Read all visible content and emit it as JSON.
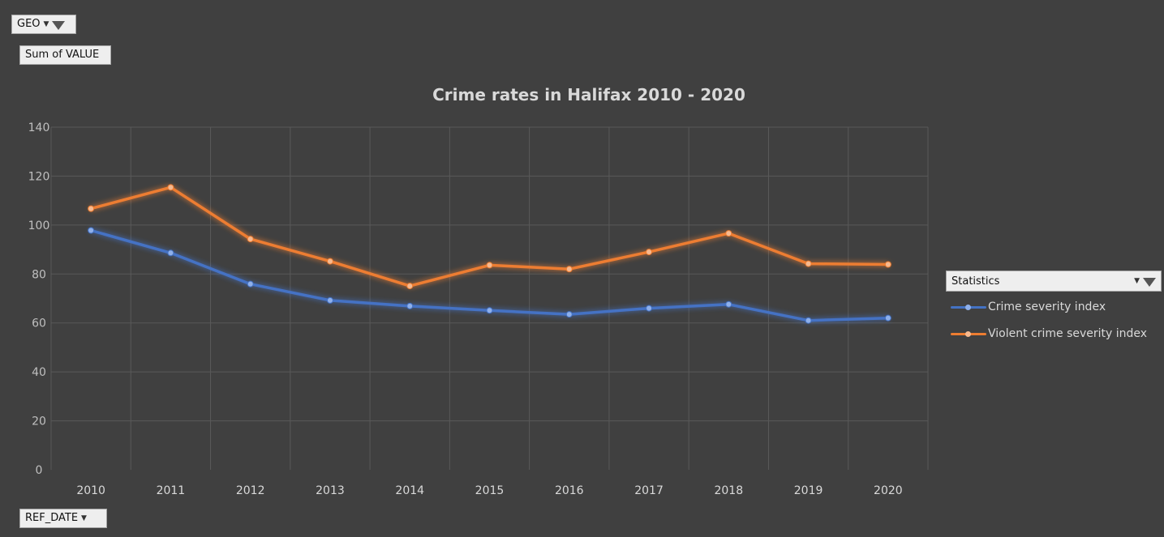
{
  "filters": {
    "geo_label": "GEO",
    "sum_label": "Sum of VALUE",
    "ref_date_label": "REF_DATE"
  },
  "legend": {
    "header": "Statistics"
  },
  "colors": {
    "background": "#404040",
    "grid": "#595959",
    "text": "#d9d9d9",
    "series_blue": "#4472c4",
    "series_orange": "#ed7d31"
  },
  "chart_data": {
    "type": "line",
    "title": "Crime rates in Halifax 2010 - 2020",
    "xlabel": "",
    "ylabel": "",
    "categories": [
      "2010",
      "2011",
      "2012",
      "2013",
      "2014",
      "2015",
      "2016",
      "2017",
      "2018",
      "2019",
      "2020"
    ],
    "ylim": [
      0,
      140
    ],
    "yticks": [
      0,
      20,
      40,
      60,
      80,
      100,
      120,
      140
    ],
    "grid": true,
    "legend_position": "right",
    "series": [
      {
        "name": "Crime severity index",
        "color": "#4472c4",
        "values": [
          97.8,
          88.6,
          75.9,
          69.2,
          66.9,
          65.1,
          63.5,
          66.0,
          67.6,
          61.0,
          62.0
        ]
      },
      {
        "name": "Violent crime severity index",
        "color": "#ed7d31",
        "values": [
          106.7,
          115.4,
          94.3,
          85.2,
          75.1,
          83.6,
          82.0,
          89.0,
          96.6,
          84.2,
          83.9
        ]
      }
    ]
  }
}
